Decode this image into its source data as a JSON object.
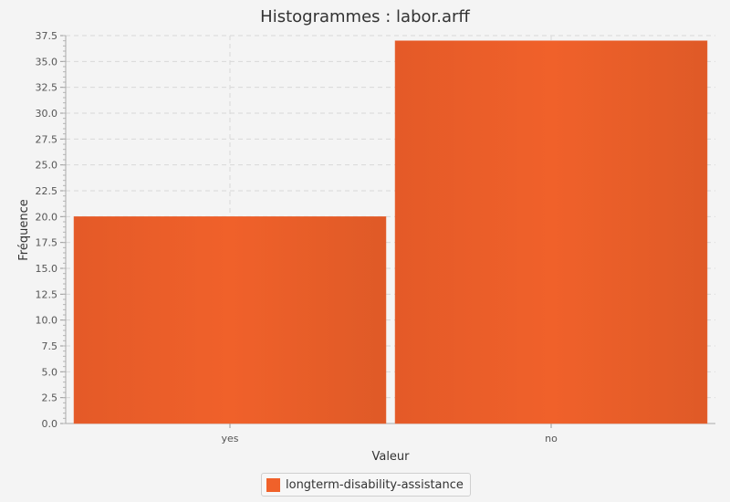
{
  "chart_data": {
    "type": "bar",
    "title": "Histogrammes : labor.arff",
    "xlabel": "Valeur",
    "ylabel": "Fréquence",
    "categories": [
      "yes",
      "no"
    ],
    "series": [
      {
        "name": "longterm-disability-assistance",
        "values": [
          20,
          37
        ],
        "color": "#f0612a"
      }
    ],
    "ylim": [
      0,
      37.5
    ],
    "yticks": [
      "0.0",
      "2.5",
      "5.0",
      "7.5",
      "10.0",
      "12.5",
      "15.0",
      "17.5",
      "20.0",
      "22.5",
      "25.0",
      "27.5",
      "30.0",
      "32.5",
      "35.0",
      "37.5"
    ],
    "grid": true,
    "legend_position": "bottom-center"
  }
}
